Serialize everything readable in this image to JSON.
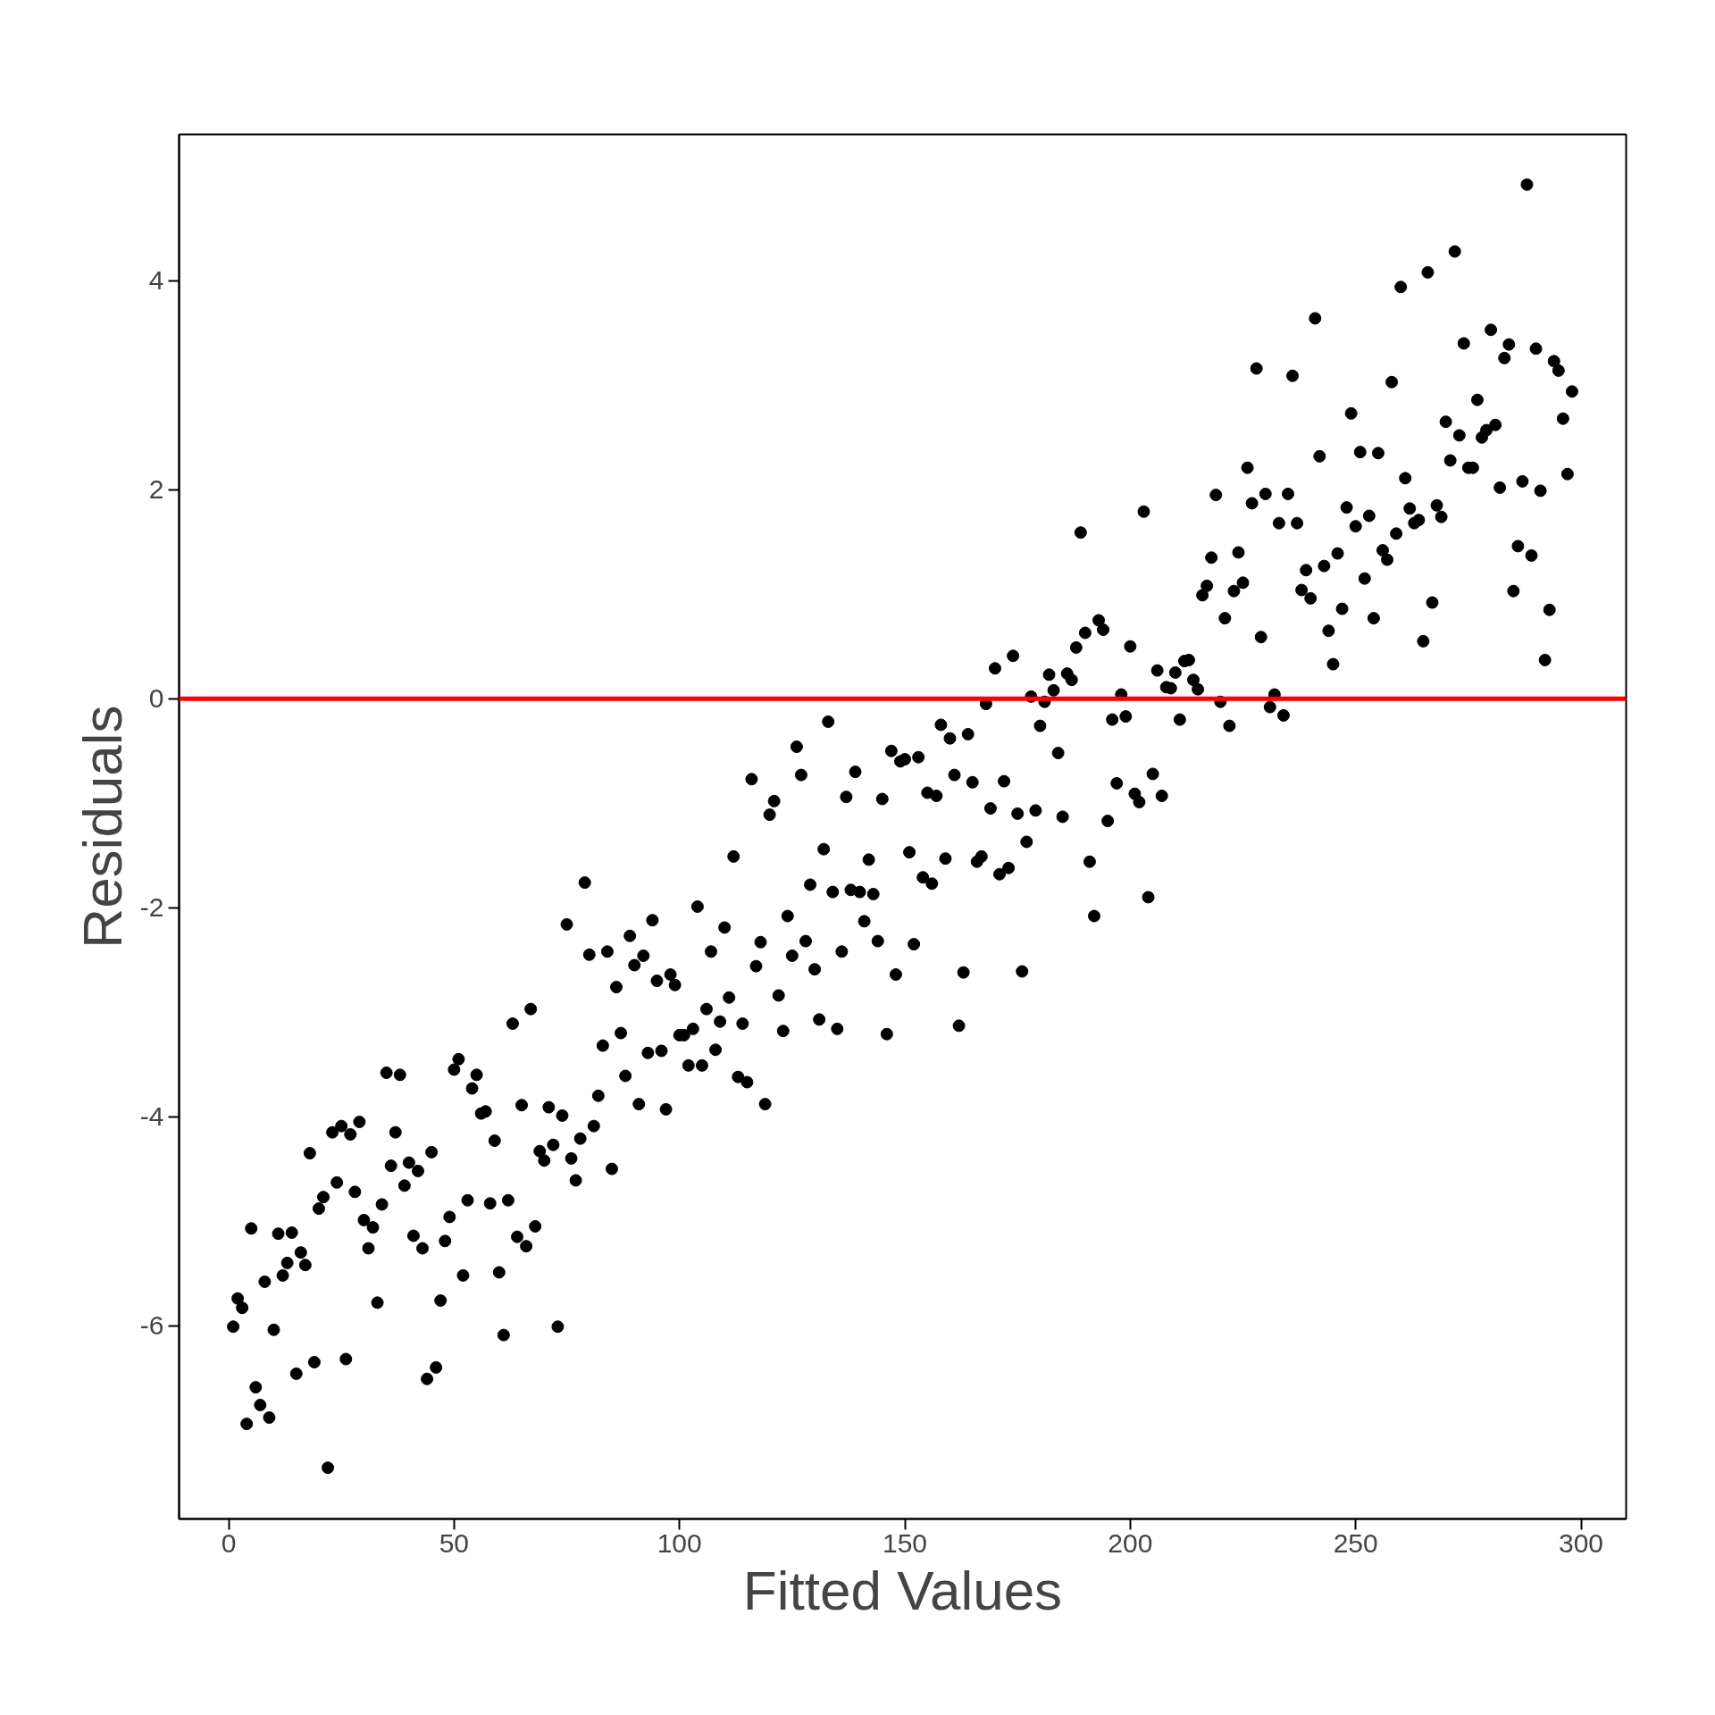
{
  "chart_data": {
    "type": "scatter",
    "xlabel": "Fitted Values",
    "ylabel": "Residuals",
    "xlim": [
      -11,
      310
    ],
    "ylim": [
      -7.85,
      5.4
    ],
    "xticks": [
      0,
      50,
      100,
      150,
      200,
      250,
      300
    ],
    "yticks": [
      -6,
      -4,
      -2,
      0,
      2,
      4
    ],
    "grid": false,
    "marker": "circle",
    "ref_lines": [
      {
        "axis": "y",
        "value": 0,
        "color": "#ff0000"
      }
    ],
    "series": [
      {
        "color": "#000000",
        "x": [
          1,
          2,
          3,
          4,
          5,
          6,
          7,
          8,
          9,
          10,
          11,
          12,
          13,
          14,
          15,
          16,
          17,
          18,
          19,
          20,
          21,
          22,
          23,
          24,
          25,
          26,
          27,
          28,
          29,
          30,
          31,
          32,
          33,
          34,
          35,
          36,
          37,
          38,
          39,
          40,
          41,
          42,
          43,
          44,
          45,
          46,
          47,
          48,
          49,
          50,
          51,
          52,
          53,
          54,
          55,
          56,
          57,
          58,
          59,
          60,
          61,
          62,
          63,
          64,
          65,
          66,
          67,
          68,
          69,
          70,
          71,
          72,
          73,
          74,
          75,
          76,
          77,
          78,
          79,
          80,
          81,
          82,
          83,
          84,
          85,
          86,
          87,
          88,
          89,
          90,
          91,
          92,
          93,
          94,
          95,
          96,
          97,
          98,
          99,
          100,
          101,
          102,
          103,
          104,
          105,
          106,
          107,
          108,
          109,
          110,
          111,
          112,
          113,
          114,
          115,
          116,
          117,
          118,
          119,
          120,
          121,
          122,
          123,
          124,
          125,
          126,
          127,
          128,
          129,
          130,
          131,
          132,
          133,
          134,
          135,
          136,
          137,
          138,
          139,
          140,
          141,
          142,
          143,
          144,
          145,
          146,
          147,
          148,
          149,
          150,
          151,
          152,
          153,
          154,
          155,
          156,
          157,
          158,
          159,
          160,
          161,
          162,
          163,
          164,
          165,
          166,
          167,
          168,
          169,
          170,
          171,
          172,
          173,
          174,
          175,
          176,
          177,
          178,
          179,
          180,
          181,
          182,
          183,
          184,
          185,
          186,
          187,
          188,
          189,
          190,
          191,
          192,
          193,
          194,
          195,
          196,
          197,
          198,
          199,
          200,
          201,
          202,
          203,
          204,
          205,
          206,
          207,
          208,
          209,
          210,
          211,
          212,
          213,
          214,
          215,
          216,
          217,
          218,
          219,
          220,
          221,
          222,
          223,
          224,
          225,
          226,
          227,
          228,
          229,
          230,
          231,
          232,
          233,
          234,
          235,
          236,
          237,
          238,
          239,
          240,
          241,
          242,
          243,
          244,
          245,
          246,
          247,
          248,
          249,
          250,
          251,
          252,
          253,
          254,
          255,
          256,
          257,
          258,
          259,
          260,
          261,
          262,
          263,
          264,
          265,
          266,
          267,
          268,
          269,
          270,
          271,
          272,
          273,
          274,
          275,
          276,
          277,
          278,
          279,
          280,
          281,
          282,
          283,
          284,
          285,
          286,
          287,
          288,
          289,
          290,
          291,
          292,
          293,
          294,
          295,
          296,
          297,
          298
        ],
        "values": [
          -6.01,
          -5.74,
          -5.83,
          -6.94,
          -5.07,
          -6.59,
          -6.76,
          -5.58,
          -6.88,
          -6.04,
          -5.12,
          -5.52,
          -5.4,
          -5.11,
          -6.46,
          -5.3,
          -5.42,
          -4.35,
          -6.35,
          -4.88,
          -4.77,
          -7.36,
          -4.15,
          -4.63,
          -4.09,
          -6.32,
          -4.17,
          -4.72,
          -4.05,
          -4.99,
          -5.26,
          -5.06,
          -5.78,
          -4.84,
          -3.58,
          -4.47,
          -4.15,
          -3.6,
          -4.66,
          -4.44,
          -5.14,
          -4.52,
          -5.26,
          -6.51,
          -4.34,
          -6.4,
          -5.76,
          -5.19,
          -4.96,
          -3.55,
          -3.45,
          -5.52,
          -4.8,
          -3.73,
          -3.6,
          -3.97,
          -3.95,
          -4.83,
          -4.23,
          -5.49,
          -6.09,
          -4.8,
          -3.11,
          -5.15,
          -3.89,
          -5.24,
          -2.97,
          -5.05,
          -4.33,
          -4.42,
          -3.91,
          -4.27,
          -6.01,
          -3.99,
          -2.16,
          -4.4,
          -4.61,
          -4.21,
          -1.76,
          -2.45,
          -4.09,
          -3.8,
          -3.32,
          -2.42,
          -4.5,
          -2.76,
          -3.2,
          -3.61,
          -2.27,
          -2.55,
          -3.88,
          -2.46,
          -3.39,
          -2.12,
          -2.7,
          -3.37,
          -3.93,
          -2.64,
          -2.74,
          -3.22,
          -3.22,
          -3.51,
          -3.16,
          -1.99,
          -3.51,
          -2.97,
          -2.42,
          -3.36,
          -3.09,
          -2.19,
          -2.86,
          -1.51,
          -3.62,
          -3.11,
          -3.67,
          -0.77,
          -2.56,
          -2.33,
          -3.88,
          -1.11,
          -0.98,
          -2.84,
          -3.18,
          -2.08,
          -2.46,
          -0.46,
          -0.73,
          -2.32,
          -1.78,
          -2.59,
          -3.07,
          -1.44,
          -0.22,
          -1.85,
          -3.16,
          -2.42,
          -0.94,
          -1.83,
          -0.7,
          -1.85,
          -2.13,
          -1.54,
          -1.87,
          -2.32,
          -0.96,
          -3.21,
          -0.5,
          -2.64,
          -0.6,
          -0.58,
          -1.47,
          -2.35,
          -0.56,
          -1.71,
          -0.9,
          -1.77,
          -0.93,
          -0.25,
          -1.53,
          -0.38,
          -0.73,
          -3.13,
          -2.62,
          -0.34,
          -0.8,
          -1.56,
          -1.51,
          -0.05,
          -1.05,
          0.29,
          -1.68,
          -0.79,
          -1.62,
          0.41,
          -1.1,
          -2.61,
          -1.37,
          0.02,
          -1.07,
          -0.26,
          -0.03,
          0.23,
          0.08,
          -0.52,
          -1.13,
          0.24,
          0.18,
          0.49,
          1.59,
          0.63,
          -1.56,
          -2.08,
          0.75,
          0.66,
          -1.17,
          -0.2,
          -0.81,
          0.04,
          -0.17,
          0.5,
          -0.91,
          -0.99,
          1.79,
          -1.9,
          -0.72,
          0.27,
          -0.93,
          0.11,
          0.1,
          0.25,
          -0.2,
          0.36,
          0.37,
          0.18,
          0.09,
          0.99,
          1.08,
          1.35,
          1.95,
          -0.03,
          0.77,
          -0.26,
          1.03,
          1.4,
          1.11,
          2.21,
          1.87,
          3.16,
          0.59,
          1.96,
          -0.08,
          0.04,
          1.68,
          -0.16,
          1.96,
          3.09,
          1.68,
          1.04,
          1.23,
          0.96,
          3.64,
          2.32,
          1.27,
          0.65,
          0.33,
          1.39,
          0.86,
          1.83,
          2.73,
          1.65,
          2.36,
          1.15,
          1.75,
          0.77,
          2.35,
          1.42,
          1.33,
          3.03,
          1.58,
          3.94,
          2.11,
          1.82,
          1.68,
          1.71,
          0.55,
          4.08,
          0.92,
          1.85,
          1.74,
          2.65,
          2.28,
          4.28,
          2.52,
          3.4,
          2.21,
          2.21,
          2.86,
          2.5,
          2.57,
          3.53,
          2.62,
          2.02,
          3.26,
          3.39,
          1.03,
          1.46,
          2.08,
          4.92,
          1.37,
          3.35,
          1.99,
          0.37,
          0.85,
          3.23,
          3.14,
          2.68,
          2.15,
          2.94
        ]
      }
    ]
  }
}
